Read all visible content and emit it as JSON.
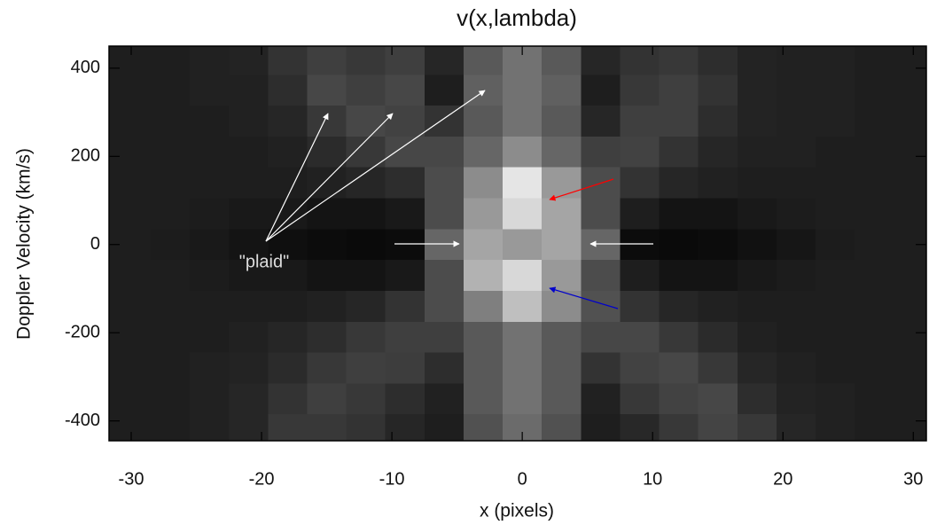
{
  "chart_data": {
    "type": "heatmap",
    "title": "v(x,lambda)",
    "x_label": "x (pixels)",
    "y_label": "Doppler Velocity (km/s)",
    "annotation": "\"plaid\"",
    "colormap": "gray",
    "xlim": [
      -31.7,
      31.0
    ],
    "ylim": [
      -445,
      450
    ],
    "xticks": [
      -30,
      -20,
      -10,
      0,
      10,
      20,
      30
    ],
    "yticks": [
      -400,
      -200,
      0,
      200,
      400
    ],
    "x": [
      -30,
      -27,
      -24,
      -21,
      -18,
      -15,
      -12,
      -9,
      -6,
      -3,
      0,
      3,
      6,
      9,
      12,
      15,
      18,
      21,
      24,
      27,
      30
    ],
    "y": [
      420,
      350,
      280,
      210,
      140,
      70,
      0,
      -70,
      -140,
      -210,
      -280,
      -350,
      -420
    ],
    "z": [
      [
        0.12,
        0.12,
        0.13,
        0.14,
        0.2,
        0.25,
        0.22,
        0.25,
        0.15,
        0.35,
        0.45,
        0.35,
        0.15,
        0.2,
        0.22,
        0.18,
        0.14,
        0.13,
        0.13,
        0.12,
        0.12
      ],
      [
        0.12,
        0.12,
        0.13,
        0.13,
        0.18,
        0.28,
        0.25,
        0.28,
        0.12,
        0.38,
        0.45,
        0.38,
        0.12,
        0.22,
        0.25,
        0.2,
        0.14,
        0.13,
        0.13,
        0.12,
        0.12
      ],
      [
        0.12,
        0.12,
        0.12,
        0.13,
        0.15,
        0.22,
        0.28,
        0.26,
        0.2,
        0.35,
        0.45,
        0.35,
        0.15,
        0.25,
        0.25,
        0.18,
        0.14,
        0.13,
        0.13,
        0.12,
        0.12
      ],
      [
        0.12,
        0.12,
        0.12,
        0.12,
        0.13,
        0.17,
        0.22,
        0.28,
        0.28,
        0.4,
        0.55,
        0.4,
        0.25,
        0.26,
        0.2,
        0.15,
        0.13,
        0.13,
        0.12,
        0.12,
        0.12
      ],
      [
        0.12,
        0.12,
        0.12,
        0.12,
        0.12,
        0.13,
        0.15,
        0.18,
        0.3,
        0.55,
        0.9,
        0.6,
        0.3,
        0.2,
        0.15,
        0.13,
        0.12,
        0.12,
        0.12,
        0.12,
        0.12
      ],
      [
        0.12,
        0.12,
        0.11,
        0.1,
        0.1,
        0.08,
        0.08,
        0.1,
        0.3,
        0.6,
        0.85,
        0.65,
        0.3,
        0.12,
        0.08,
        0.08,
        0.1,
        0.11,
        0.12,
        0.12,
        0.12
      ],
      [
        0.12,
        0.11,
        0.1,
        0.08,
        0.06,
        0.05,
        0.04,
        0.05,
        0.4,
        0.65,
        0.6,
        0.65,
        0.4,
        0.05,
        0.04,
        0.05,
        0.07,
        0.09,
        0.11,
        0.12,
        0.12
      ],
      [
        0.12,
        0.12,
        0.11,
        0.1,
        0.1,
        0.08,
        0.08,
        0.1,
        0.3,
        0.7,
        0.85,
        0.6,
        0.3,
        0.12,
        0.08,
        0.08,
        0.1,
        0.11,
        0.12,
        0.12,
        0.12
      ],
      [
        0.12,
        0.12,
        0.12,
        0.12,
        0.12,
        0.13,
        0.15,
        0.2,
        0.3,
        0.5,
        0.75,
        0.55,
        0.32,
        0.2,
        0.15,
        0.13,
        0.12,
        0.12,
        0.12,
        0.12,
        0.12
      ],
      [
        0.12,
        0.12,
        0.12,
        0.13,
        0.15,
        0.18,
        0.22,
        0.25,
        0.25,
        0.35,
        0.45,
        0.35,
        0.28,
        0.28,
        0.22,
        0.17,
        0.13,
        0.12,
        0.12,
        0.12,
        0.12
      ],
      [
        0.12,
        0.12,
        0.13,
        0.14,
        0.17,
        0.22,
        0.25,
        0.24,
        0.18,
        0.35,
        0.45,
        0.35,
        0.2,
        0.26,
        0.28,
        0.22,
        0.15,
        0.13,
        0.12,
        0.12,
        0.12
      ],
      [
        0.12,
        0.12,
        0.13,
        0.15,
        0.2,
        0.25,
        0.22,
        0.18,
        0.13,
        0.35,
        0.45,
        0.35,
        0.13,
        0.22,
        0.26,
        0.28,
        0.18,
        0.14,
        0.13,
        0.12,
        0.12
      ],
      [
        0.12,
        0.12,
        0.13,
        0.15,
        0.22,
        0.22,
        0.2,
        0.15,
        0.12,
        0.32,
        0.42,
        0.32,
        0.12,
        0.16,
        0.22,
        0.27,
        0.22,
        0.15,
        0.13,
        0.12,
        0.12
      ]
    ]
  }
}
